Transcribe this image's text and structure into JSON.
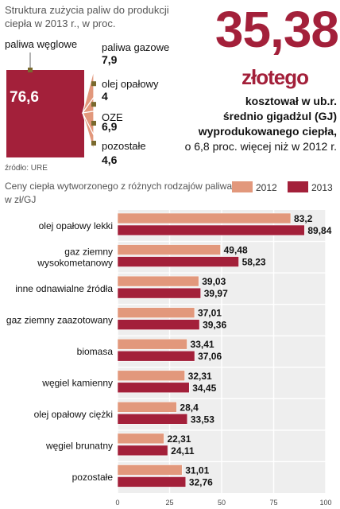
{
  "headline": {
    "value": "35,38",
    "unit": "złotego",
    "line1": "kosztował w ub.r.",
    "line2": "średnio gigadżul (GJ)",
    "line3": "wyprodukowanego ciepła,",
    "line4": "o 6,8 proc. więcej niż w 2012 r."
  },
  "chart_data": [
    {
      "type": "pie",
      "title": "Struktura zużycia paliw do produkcji ciepła w 2013 r., w proc.",
      "title_lines": [
        "Struktura zużycia paliw do produkcji",
        "ciepła w 2013 r., w proc."
      ],
      "categories": [
        "paliwa węglowe",
        "paliwa gazowe",
        "olej opałowy",
        "OZE",
        "pozostałe"
      ],
      "values": [
        76.6,
        7.9,
        4,
        6.9,
        4.6
      ],
      "value_labels": [
        "76,6",
        "7,9",
        "4",
        "6,9",
        "4,6"
      ],
      "source": "źródło: URE",
      "colors": {
        "main": "#a3203a",
        "slices": "#e2987c",
        "marker": "#7a6a2e"
      }
    },
    {
      "type": "bar",
      "title": "Ceny ciepła wytworzonego z różnych rodzajów paliwa",
      "subtitle": "w zł/GJ",
      "categories": [
        [
          "olej opałowy lekki"
        ],
        [
          "gaz ziemny",
          "wysokometanowy"
        ],
        [
          "inne odnawialne źródła"
        ],
        [
          "gaz ziemny zaazotowany"
        ],
        [
          "biomasa"
        ],
        [
          "węgiel kamienny"
        ],
        [
          "olej opałowy ciężki"
        ],
        [
          "węgiel brunatny"
        ],
        [
          "pozostałe"
        ]
      ],
      "series": [
        {
          "name": "2012",
          "color": "#e2987c",
          "values": [
            83.2,
            49.48,
            39.03,
            37.01,
            33.41,
            32.31,
            28.4,
            22.31,
            31.01
          ],
          "labels": [
            "83,2",
            "49,48",
            "39,03",
            "37,01",
            "33,41",
            "32,31",
            "28,4",
            "22,31",
            "31,01"
          ]
        },
        {
          "name": "2013",
          "color": "#a3203a",
          "values": [
            89.84,
            58.23,
            39.97,
            39.36,
            37.06,
            34.45,
            33.53,
            24.11,
            32.76
          ],
          "labels": [
            "89,84",
            "58,23",
            "39,97",
            "39,36",
            "37,06",
            "34,45",
            "33,53",
            "24,11",
            "32,76"
          ]
        }
      ],
      "xlim": [
        0,
        100
      ],
      "xticks": [
        0,
        25,
        50,
        75,
        100
      ],
      "legend": "top-right",
      "grid": true,
      "colors": {
        "panel": "#eeeeee",
        "grid": "#ffffff"
      }
    }
  ]
}
